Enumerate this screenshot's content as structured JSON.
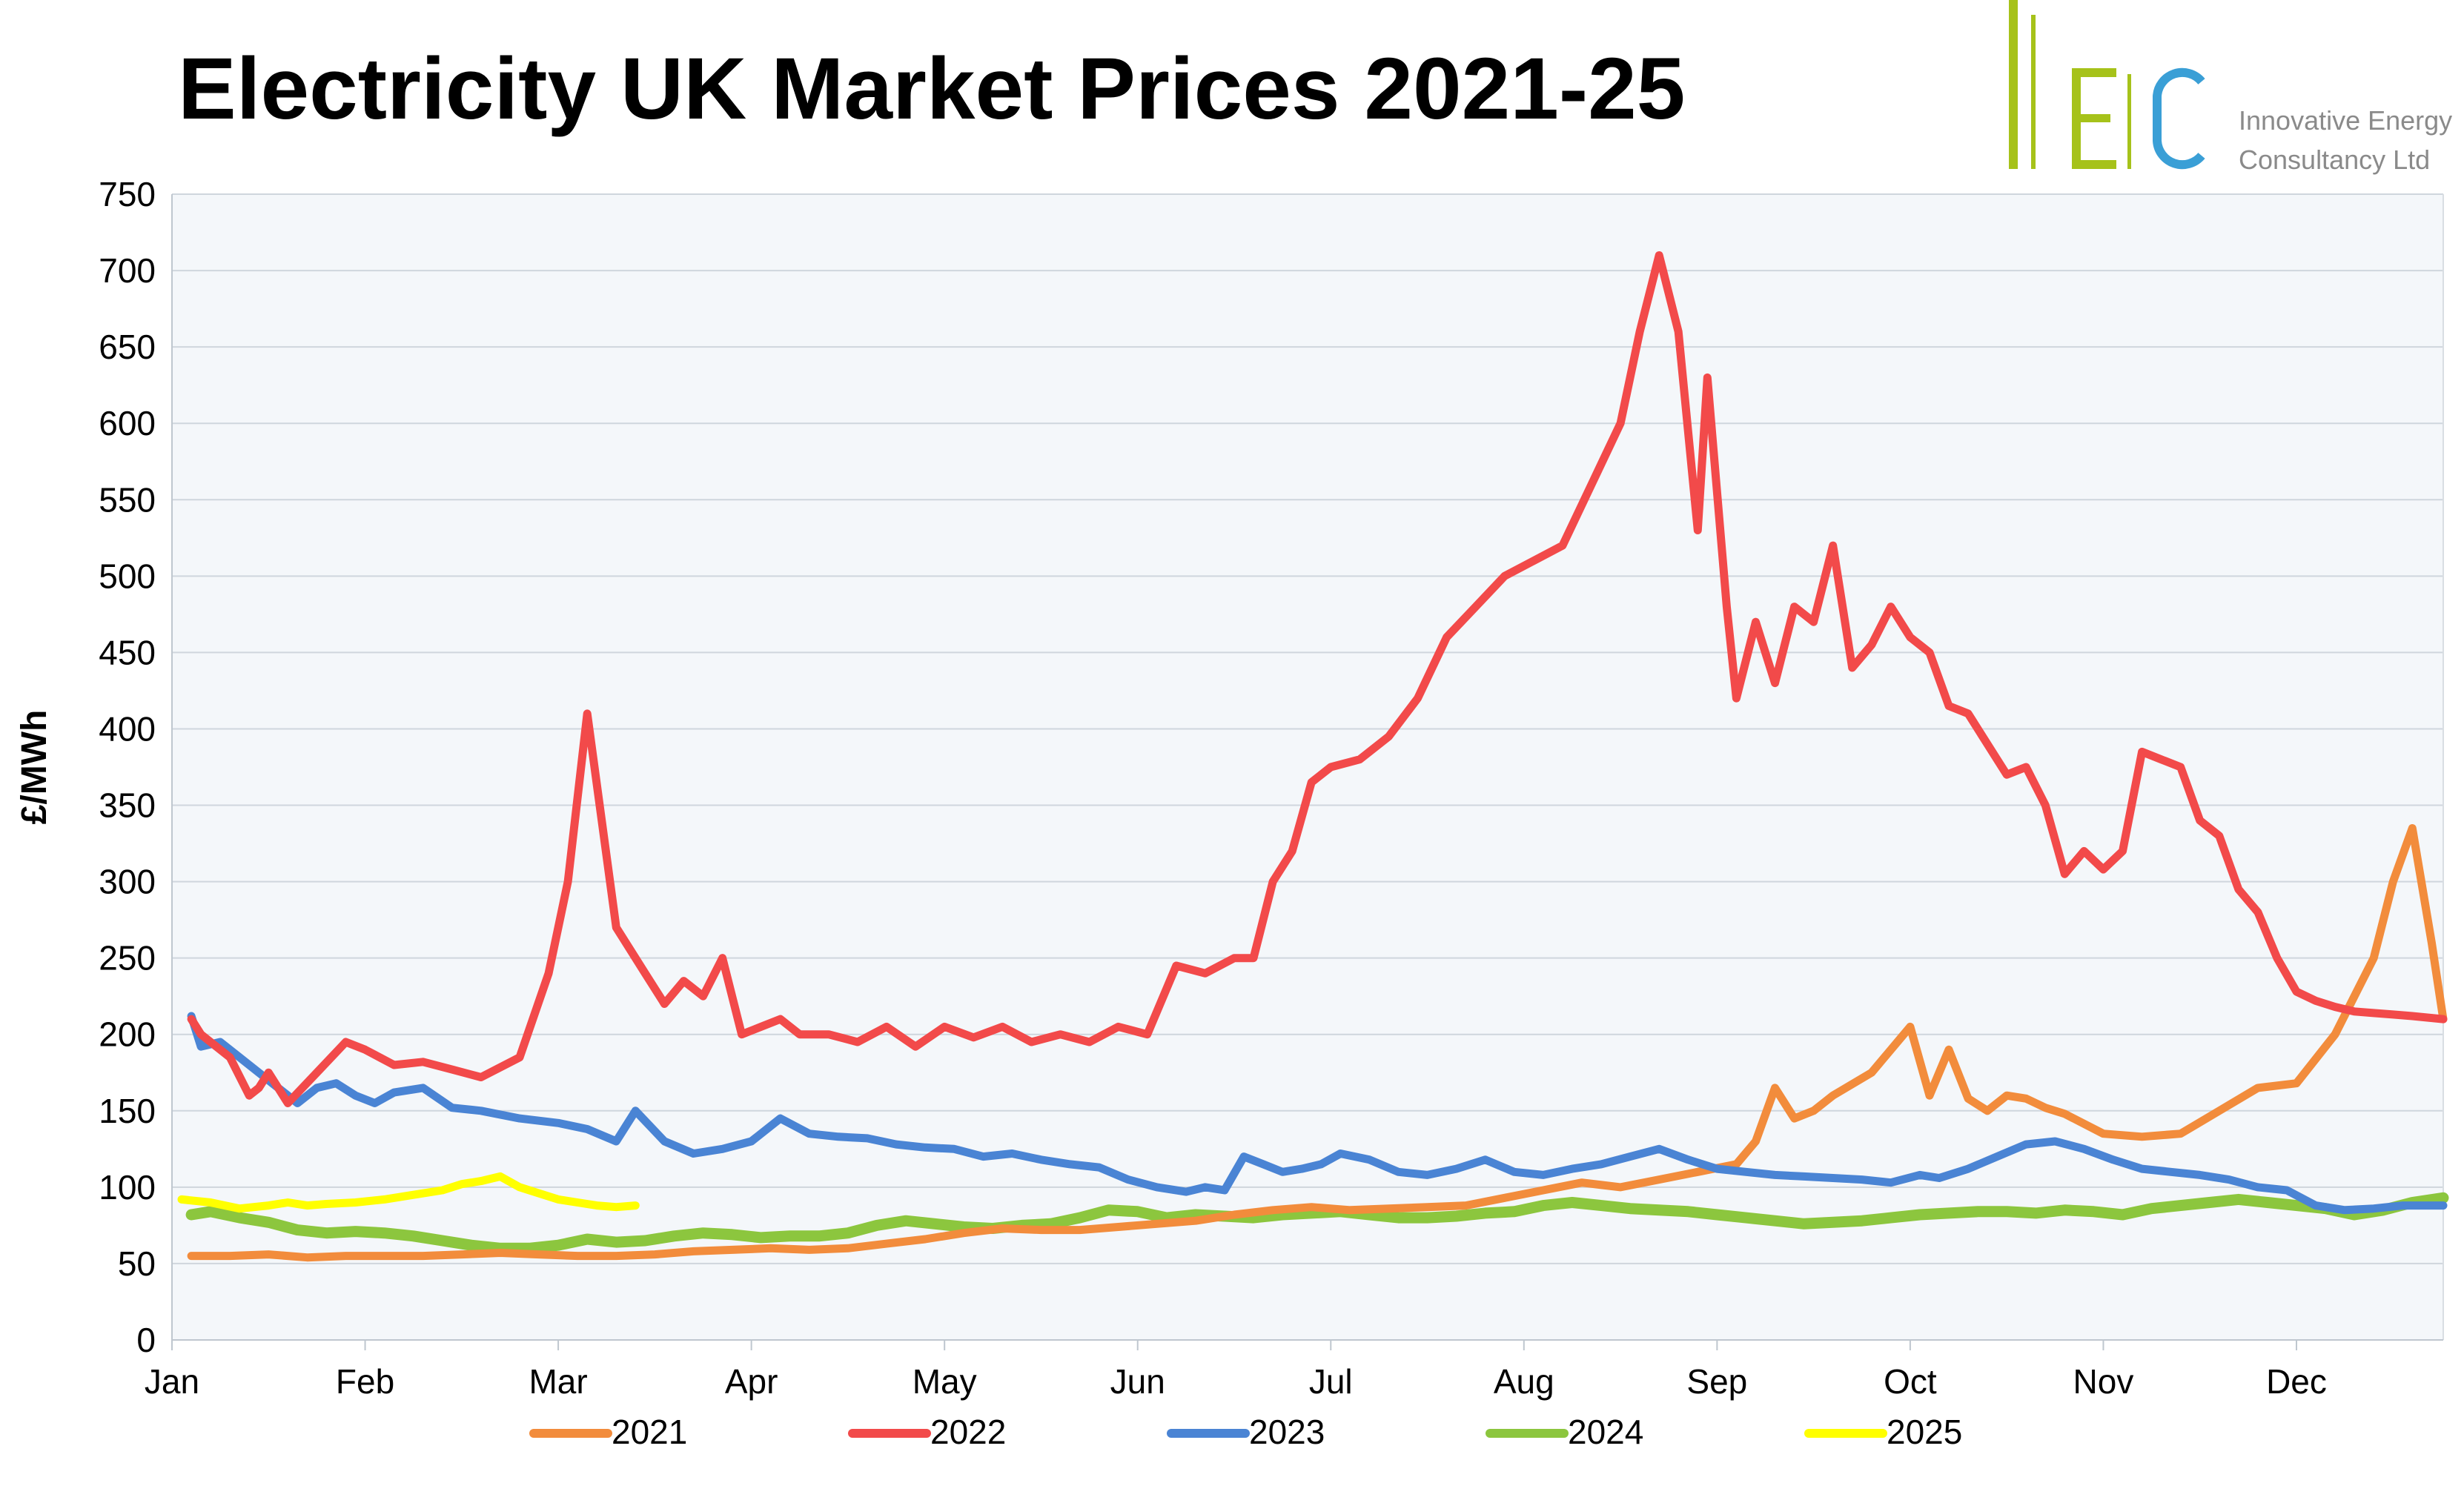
{
  "page": {
    "title": "Electricity UK Market Prices 2021-25"
  },
  "logo": {
    "mark_letters": [
      "I",
      "E",
      "C"
    ],
    "line1": "Innovative Energy",
    "line2": "Consultancy Ltd",
    "colors": {
      "i": "#a6c21a",
      "e": "#a6c21a",
      "c": "#3a9fd6",
      "text": "#8a8a8a"
    }
  },
  "chart_data": {
    "type": "line",
    "title": "Electricity UK Market Prices 2021-25",
    "ylabel": "£/MWh",
    "xlabel": "",
    "ylim": [
      0,
      750
    ],
    "xlim": [
      0,
      11.76
    ],
    "yticks": [
      0,
      50,
      100,
      150,
      200,
      250,
      300,
      350,
      400,
      450,
      500,
      550,
      600,
      650,
      700,
      750
    ],
    "categories": [
      "Jan",
      "Feb",
      "Mar",
      "Apr",
      "May",
      "Jun",
      "Jul",
      "Aug",
      "Sep",
      "Oct",
      "Nov",
      "Dec"
    ],
    "grid": "horizontal",
    "plot_background": "#f4f7fa",
    "legend_position": "bottom",
    "series": [
      {
        "name": "2021",
        "color": "#f28c3c",
        "x": [
          0.1,
          0.3,
          0.5,
          0.7,
          0.9,
          1.1,
          1.3,
          1.5,
          1.7,
          1.9,
          2.1,
          2.3,
          2.5,
          2.7,
          2.9,
          3.1,
          3.3,
          3.5,
          3.7,
          3.9,
          4.1,
          4.3,
          4.5,
          4.7,
          4.9,
          5.1,
          5.3,
          5.5,
          5.7,
          5.9,
          6.1,
          6.3,
          6.5,
          6.7,
          6.9,
          7.1,
          7.3,
          7.5,
          7.7,
          7.9,
          8.1,
          8.2,
          8.3,
          8.4,
          8.5,
          8.6,
          8.8,
          9.0,
          9.1,
          9.2,
          9.3,
          9.4,
          9.5,
          9.6,
          9.7,
          9.8,
          10.0,
          10.2,
          10.4,
          10.6,
          10.8,
          11.0,
          11.2,
          11.4,
          11.5,
          11.6,
          11.7,
          11.76
        ],
        "values": [
          55,
          55,
          56,
          54,
          55,
          55,
          55,
          56,
          57,
          56,
          55,
          55,
          56,
          58,
          59,
          60,
          59,
          60,
          63,
          66,
          70,
          73,
          72,
          72,
          74,
          76,
          78,
          82,
          85,
          87,
          85,
          86,
          87,
          88,
          93,
          98,
          103,
          100,
          105,
          110,
          115,
          130,
          165,
          145,
          150,
          160,
          175,
          205,
          160,
          190,
          158,
          150,
          160,
          158,
          152,
          148,
          135,
          133,
          135,
          150,
          165,
          168,
          200,
          250,
          300,
          335,
          260,
          210
        ]
      },
      {
        "name": "2022",
        "color": "#f24a4a",
        "x": [
          0.1,
          0.15,
          0.3,
          0.4,
          0.45,
          0.5,
          0.6,
          0.75,
          0.9,
          1.0,
          1.15,
          1.3,
          1.45,
          1.6,
          1.8,
          1.95,
          2.05,
          2.15,
          2.3,
          2.45,
          2.55,
          2.65,
          2.75,
          2.85,
          2.95,
          3.05,
          3.15,
          3.25,
          3.4,
          3.55,
          3.7,
          3.85,
          4.0,
          4.15,
          4.3,
          4.45,
          4.6,
          4.75,
          4.9,
          5.05,
          5.2,
          5.35,
          5.5,
          5.6,
          5.7,
          5.8,
          5.9,
          6.0,
          6.15,
          6.3,
          6.45,
          6.6,
          6.75,
          6.9,
          7.05,
          7.2,
          7.35,
          7.5,
          7.6,
          7.7,
          7.8,
          7.9,
          7.95,
          8.05,
          8.1,
          8.2,
          8.3,
          8.4,
          8.5,
          8.6,
          8.7,
          8.8,
          8.9,
          9.0,
          9.1,
          9.2,
          9.3,
          9.4,
          9.5,
          9.6,
          9.7,
          9.8,
          9.9,
          10.0,
          10.1,
          10.2,
          10.3,
          10.4,
          10.5,
          10.6,
          10.7,
          10.8,
          10.9,
          11.0,
          11.1,
          11.2,
          11.3,
          11.4,
          11.5,
          11.6,
          11.76
        ],
        "values": [
          210,
          200,
          185,
          160,
          165,
          175,
          155,
          175,
          195,
          190,
          180,
          182,
          177,
          172,
          185,
          240,
          300,
          410,
          270,
          240,
          220,
          235,
          225,
          250,
          200,
          205,
          210,
          200,
          200,
          195,
          205,
          192,
          205,
          198,
          205,
          195,
          200,
          195,
          205,
          200,
          245,
          240,
          250,
          250,
          300,
          320,
          365,
          375,
          380,
          395,
          420,
          460,
          480,
          500,
          510,
          520,
          560,
          600,
          660,
          710,
          660,
          530,
          630,
          480,
          420,
          470,
          430,
          480,
          470,
          520,
          440,
          455,
          480,
          460,
          450,
          415,
          410,
          390,
          370,
          375,
          350,
          305,
          320,
          308,
          320,
          385,
          380,
          375,
          340,
          330,
          295,
          280,
          250,
          228,
          222,
          218,
          215,
          214,
          213,
          212,
          210
        ]
      },
      {
        "name": "2023",
        "color": "#4a84d4",
        "x": [
          0.1,
          0.15,
          0.25,
          0.35,
          0.45,
          0.55,
          0.65,
          0.75,
          0.85,
          0.95,
          1.05,
          1.15,
          1.3,
          1.45,
          1.6,
          1.8,
          2.0,
          2.15,
          2.3,
          2.4,
          2.55,
          2.7,
          2.85,
          3.0,
          3.15,
          3.3,
          3.45,
          3.6,
          3.75,
          3.9,
          4.05,
          4.2,
          4.35,
          4.5,
          4.65,
          4.8,
          4.95,
          5.1,
          5.25,
          5.35,
          5.45,
          5.55,
          5.65,
          5.75,
          5.85,
          5.95,
          6.05,
          6.2,
          6.35,
          6.5,
          6.65,
          6.8,
          6.95,
          7.1,
          7.25,
          7.4,
          7.55,
          7.7,
          7.85,
          8.0,
          8.15,
          8.3,
          8.45,
          8.6,
          8.75,
          8.9,
          9.05,
          9.15,
          9.3,
          9.45,
          9.6,
          9.75,
          9.9,
          10.05,
          10.2,
          10.35,
          10.5,
          10.65,
          10.8,
          10.95,
          11.1,
          11.25,
          11.4,
          11.55,
          11.76
        ],
        "values": [
          212,
          192,
          195,
          185,
          175,
          165,
          155,
          165,
          168,
          160,
          155,
          162,
          165,
          152,
          150,
          145,
          142,
          138,
          130,
          150,
          130,
          122,
          125,
          130,
          145,
          135,
          133,
          132,
          128,
          126,
          125,
          120,
          122,
          118,
          115,
          113,
          105,
          100,
          97,
          100,
          98,
          120,
          115,
          110,
          112,
          115,
          122,
          118,
          110,
          108,
          112,
          118,
          110,
          108,
          112,
          115,
          120,
          125,
          118,
          112,
          110,
          108,
          107,
          106,
          105,
          103,
          108,
          106,
          112,
          120,
          128,
          130,
          125,
          118,
          112,
          110,
          108,
          105,
          100,
          98,
          88,
          85,
          86,
          88,
          88
        ]
      },
      {
        "name": "2024",
        "color": "#8cc63e",
        "x": [
          0.1,
          0.2,
          0.35,
          0.5,
          0.65,
          0.8,
          0.95,
          1.1,
          1.25,
          1.4,
          1.55,
          1.7,
          1.85,
          2.0,
          2.15,
          2.3,
          2.45,
          2.6,
          2.75,
          2.9,
          3.05,
          3.2,
          3.35,
          3.5,
          3.65,
          3.8,
          3.95,
          4.1,
          4.25,
          4.4,
          4.55,
          4.7,
          4.85,
          5.0,
          5.15,
          5.3,
          5.45,
          5.6,
          5.75,
          5.9,
          6.05,
          6.2,
          6.35,
          6.5,
          6.65,
          6.8,
          6.95,
          7.1,
          7.25,
          7.4,
          7.55,
          7.7,
          7.85,
          8.0,
          8.15,
          8.3,
          8.45,
          8.6,
          8.75,
          8.9,
          9.05,
          9.2,
          9.35,
          9.5,
          9.65,
          9.8,
          9.95,
          10.1,
          10.25,
          10.4,
          10.55,
          10.7,
          10.85,
          11.0,
          11.15,
          11.3,
          11.45,
          11.6,
          11.76
        ],
        "values": [
          82,
          84,
          80,
          77,
          72,
          70,
          71,
          70,
          68,
          65,
          62,
          60,
          60,
          62,
          66,
          64,
          65,
          68,
          70,
          69,
          67,
          68,
          68,
          70,
          75,
          78,
          76,
          74,
          73,
          75,
          76,
          80,
          85,
          84,
          80,
          82,
          81,
          80,
          82,
          83,
          84,
          82,
          80,
          80,
          81,
          83,
          84,
          88,
          90,
          88,
          86,
          85,
          84,
          82,
          80,
          78,
          76,
          77,
          78,
          80,
          82,
          83,
          84,
          84,
          83,
          85,
          84,
          82,
          86,
          88,
          90,
          92,
          90,
          88,
          86,
          82,
          85,
          90,
          93
        ]
      },
      {
        "name": "2025",
        "color": "#ffff00",
        "x": [
          0.05,
          0.2,
          0.35,
          0.5,
          0.6,
          0.7,
          0.8,
          0.95,
          1.1,
          1.25,
          1.4,
          1.5,
          1.6,
          1.7,
          1.8,
          1.9,
          2.0,
          2.1,
          2.2,
          2.3,
          2.4
        ],
        "values": [
          92,
          90,
          86,
          88,
          90,
          88,
          89,
          90,
          92,
          95,
          98,
          102,
          104,
          107,
          100,
          96,
          92,
          90,
          88,
          87,
          88
        ]
      }
    ]
  }
}
